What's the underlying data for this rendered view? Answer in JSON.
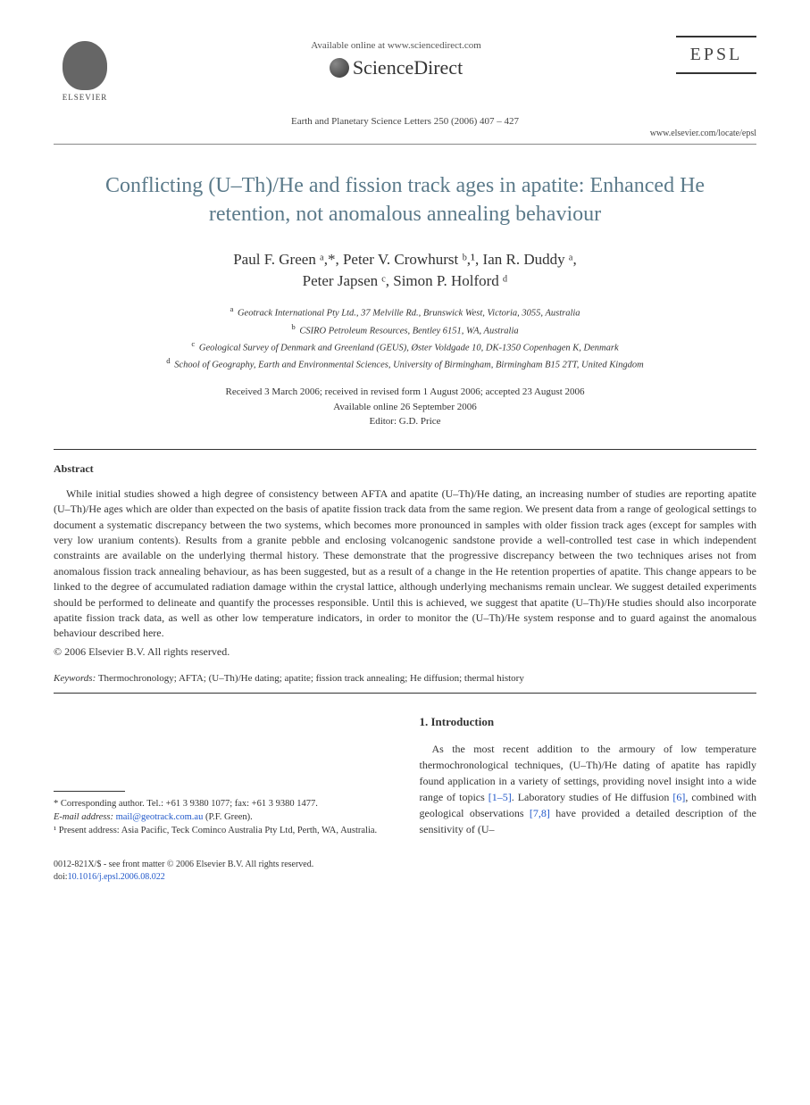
{
  "header": {
    "availableText": "Available online at www.sciencedirect.com",
    "sdBrand": "ScienceDirect",
    "elsevierLabel": "ELSEVIER",
    "epslLabel": "EPSL",
    "journalCitation": "Earth and Planetary Science Letters 250 (2006) 407 – 427",
    "journalUrl": "www.elsevier.com/locate/epsl"
  },
  "title": "Conflicting (U–Th)/He and fission track ages in apatite: Enhanced He retention, not anomalous annealing behaviour",
  "authors": {
    "line1": "Paul F. Green ᵃ,*, Peter V. Crowhurst ᵇ,¹, Ian R. Duddy ᵃ,",
    "line2": "Peter Japsen ᶜ, Simon P. Holford ᵈ"
  },
  "affiliations": {
    "a": "Geotrack International Pty Ltd., 37 Melville Rd., Brunswick West, Victoria, 3055, Australia",
    "b": "CSIRO Petroleum Resources, Bentley 6151, WA, Australia",
    "c": "Geological Survey of Denmark and Greenland (GEUS), Øster Voldgade 10, DK-1350 Copenhagen K, Denmark",
    "d": "School of Geography, Earth and Environmental Sciences, University of Birmingham, Birmingham B15 2TT, United Kingdom"
  },
  "dates": {
    "received": "Received 3 March 2006; received in revised form 1 August 2006; accepted 23 August 2006",
    "online": "Available online 26 September 2006",
    "editor": "Editor: G.D. Price"
  },
  "abstract": {
    "heading": "Abstract",
    "body": "While initial studies showed a high degree of consistency between AFTA and apatite (U–Th)/He dating, an increasing number of studies are reporting apatite (U–Th)/He ages which are older than expected on the basis of apatite fission track data from the same region. We present data from a range of geological settings to document a systematic discrepancy between the two systems, which becomes more pronounced in samples with older fission track ages (except for samples with very low uranium contents). Results from a granite pebble and enclosing volcanogenic sandstone provide a well-controlled test case in which independent constraints are available on the underlying thermal history. These demonstrate that the progressive discrepancy between the two techniques arises not from anomalous fission track annealing behaviour, as has been suggested, but as a result of a change in the He retention properties of apatite. This change appears to be linked to the degree of accumulated radiation damage within the crystal lattice, although underlying mechanisms remain unclear. We suggest detailed experiments should be performed to delineate and quantify the processes responsible. Until this is achieved, we suggest that apatite (U–Th)/He studies should also incorporate apatite fission track data, as well as other low temperature indicators, in order to monitor the (U–Th)/He system response and to guard against the anomalous behaviour described here.",
    "copyright": "© 2006 Elsevier B.V. All rights reserved."
  },
  "keywords": {
    "label": "Keywords:",
    "list": "Thermochronology; AFTA; (U–Th)/He dating; apatite; fission track annealing; He diffusion; thermal history"
  },
  "footnotes": {
    "corresponding": "* Corresponding author. Tel.: +61 3 9380 1077; fax: +61 3 9380 1477.",
    "emailLabel": "E-mail address:",
    "email": "mail@geotrack.com.au",
    "emailPerson": "(P.F. Green).",
    "present": "¹ Present address: Asia Pacific, Teck Cominco Australia Pty Ltd, Perth, WA, Australia."
  },
  "introduction": {
    "heading": "1. Introduction",
    "para": "As the most recent addition to the armoury of low temperature thermochronological techniques, (U–Th)/He dating of apatite has rapidly found application in a variety of settings, providing novel insight into a wide range of topics [1–5]. Laboratory studies of He diffusion [6], combined with geological observations [7,8] have provided a detailed description of the sensitivity of (U–",
    "refs": {
      "r1": "[1–5]",
      "r2": "[6]",
      "r3": "[7,8]"
    }
  },
  "bottomMeta": {
    "issn": "0012-821X/$ - see front matter © 2006 Elsevier B.V. All rights reserved.",
    "doiLabel": "doi:",
    "doi": "10.1016/j.epsl.2006.08.022"
  },
  "colors": {
    "titleColor": "#5b7a8a",
    "linkColor": "#2158c9",
    "textColor": "#333333",
    "ruleColor": "#333333"
  }
}
